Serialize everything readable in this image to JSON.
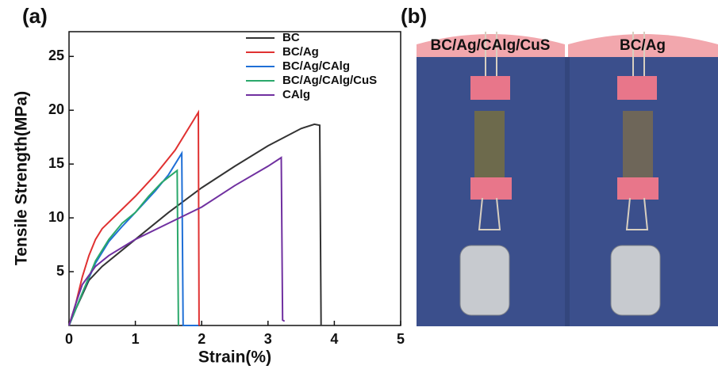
{
  "chart_data": {
    "type": "line",
    "panel_label": "(a)",
    "x_label": "Strain(%)",
    "y_label": "Tensile Strength(MPa)",
    "xlim": [
      0,
      5
    ],
    "ylim": [
      0,
      27.3
    ],
    "xticks": [
      0,
      1,
      2,
      3,
      4,
      5
    ],
    "yticks": [
      5,
      10,
      15,
      20,
      25
    ],
    "series": [
      {
        "name": "BC",
        "color": "#333333",
        "x": [
          0,
          0.1,
          0.3,
          0.5,
          1,
          1.5,
          2,
          2.5,
          3,
          3.5,
          3.7,
          3.78,
          3.8
        ],
        "values": [
          0,
          1.5,
          4.2,
          5.5,
          8,
          10.5,
          12.8,
          14.8,
          16.7,
          18.3,
          18.7,
          18.6,
          0
        ]
      },
      {
        "name": "BC/Ag",
        "color": "#e03131",
        "x": [
          0,
          0.1,
          0.2,
          0.3,
          0.4,
          0.5,
          0.7,
          1,
          1.3,
          1.6,
          1.95,
          1.96
        ],
        "values": [
          0,
          2,
          4.5,
          6.5,
          8,
          9,
          10.2,
          12,
          14,
          16.3,
          19.8,
          0
        ]
      },
      {
        "name": "BC/Ag/CAlg",
        "color": "#1f6fd6",
        "x": [
          0,
          0.2,
          0.4,
          0.6,
          0.8,
          1,
          1.3,
          1.5,
          1.7,
          1.72,
          1.95
        ],
        "values": [
          0,
          3,
          5.8,
          7.8,
          9.2,
          10.5,
          12.5,
          14,
          16,
          0,
          0
        ]
      },
      {
        "name": "BC/Ag/CAlg/CuS",
        "color": "#2aa86b",
        "x": [
          0,
          0.2,
          0.4,
          0.6,
          0.8,
          1,
          1.2,
          1.4,
          1.63,
          1.65
        ],
        "values": [
          0,
          3,
          6,
          8,
          9.5,
          10.5,
          12,
          13.3,
          14.4,
          0
        ]
      },
      {
        "name": "CAlg",
        "color": "#7030a0",
        "x": [
          0,
          0.1,
          0.2,
          0.4,
          0.6,
          1,
          1.5,
          2,
          2.5,
          3,
          3.2,
          3.22,
          3.25
        ],
        "values": [
          0,
          2,
          3.8,
          5.5,
          6.5,
          8,
          9.5,
          11,
          13,
          14.8,
          15.6,
          0.5,
          0.4
        ]
      }
    ]
  },
  "photo": {
    "panel_label": "(b)",
    "labels": [
      "BC/Ag/CAlg/CuS",
      "BC/Ag"
    ]
  }
}
